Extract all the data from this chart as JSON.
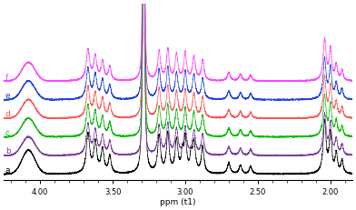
{
  "x_min": 1.85,
  "x_max": 4.25,
  "x_ticks": [
    4.0,
    3.5,
    3.0,
    2.5,
    2.0
  ],
  "x_tick_labels": [
    "4.00",
    "3.50",
    "3.00",
    "2.50",
    "2.00"
  ],
  "xlabel": "ppm (t1)",
  "spectra_colors": [
    "black",
    "#7B3FA0",
    "#00BB00",
    "#FF5555",
    "#2244DD",
    "#FF44FF"
  ],
  "spectrum_labels": [
    "a",
    "b",
    "c",
    "d",
    "e",
    "f"
  ],
  "offsets": [
    0.0,
    0.12,
    0.24,
    0.36,
    0.48,
    0.6
  ],
  "background_color": "#F5F5F5",
  "lw": 0.5
}
